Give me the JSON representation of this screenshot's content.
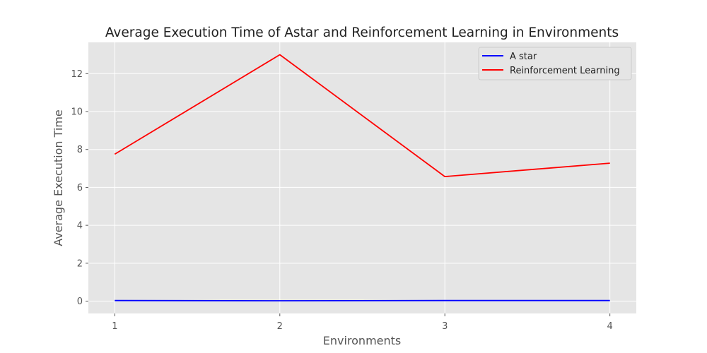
{
  "chart_data": {
    "type": "line",
    "title": "Average Execution Time of Astar and Reinforcement Learning in Environments",
    "xlabel": "Environments",
    "ylabel": "Average Execution Time",
    "x": [
      1,
      2,
      3,
      4
    ],
    "x_ticks": [
      "1",
      "2",
      "3",
      "4"
    ],
    "y_ticks": [
      "0",
      "2",
      "4",
      "6",
      "8",
      "10",
      "12"
    ],
    "xlim": [
      0.84,
      4.16
    ],
    "ylim": [
      -0.65,
      13.65
    ],
    "grid": true,
    "legend_position": "top-right",
    "series": [
      {
        "name": "A star",
        "color": "#0000ff",
        "values": [
          0.03,
          0.02,
          0.03,
          0.03
        ]
      },
      {
        "name": "Reinforcement Learning",
        "color": "#ff0000",
        "values": [
          7.75,
          13.0,
          6.57,
          7.28
        ]
      }
    ]
  },
  "colors": {
    "plot_background": "#e5e5e5",
    "grid": "#ffffff",
    "text": "#555555"
  }
}
